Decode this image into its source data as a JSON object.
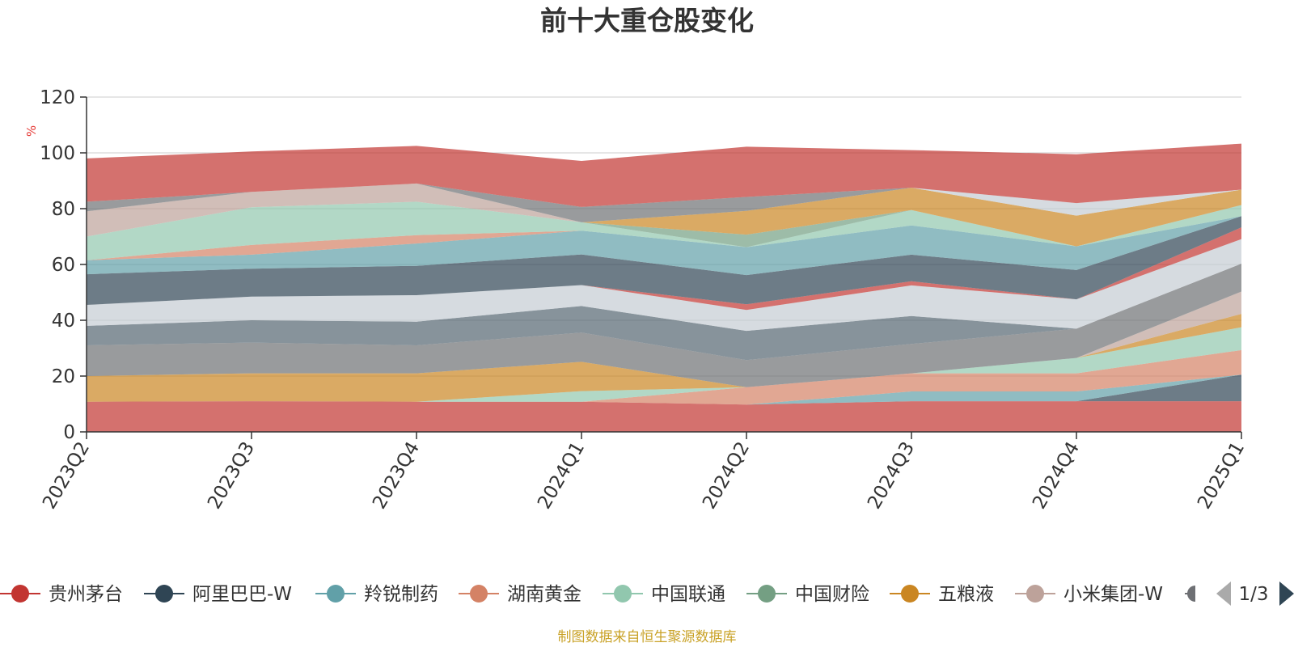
{
  "chart_data": {
    "type": "area",
    "stacked": true,
    "title": "前十大重仓股变化",
    "ylabel": "%",
    "ylim": [
      0,
      120
    ],
    "yticks": [
      0,
      20,
      40,
      60,
      80,
      100,
      120
    ],
    "grid": true,
    "categories": [
      "2023Q2",
      "2023Q3",
      "2023Q4",
      "2024Q1",
      "2024Q2",
      "2024Q3",
      "2024Q4",
      "2025Q1"
    ],
    "series": [
      {
        "name": "贵州茅台",
        "color": "#c23531",
        "values": [
          10.8,
          11.0,
          10.8,
          10.8,
          9.8,
          11.0,
          11.0,
          11.0
        ]
      },
      {
        "name": "阿里巴巴-W",
        "color": "#2f4554",
        "values": [
          0,
          0,
          0,
          0,
          0,
          0,
          0,
          9.5
        ]
      },
      {
        "name": "羚锐制药",
        "color": "#61a0a8",
        "values": [
          0,
          0,
          0,
          0,
          0,
          3.5,
          3.5,
          0
        ]
      },
      {
        "name": "湖南黄金",
        "color": "#d48265",
        "values": [
          0,
          0,
          0,
          0,
          6.2,
          6.5,
          6.5,
          8.8
        ]
      },
      {
        "name": "中国联通",
        "color": "#91c7ae",
        "values": [
          0,
          0,
          0,
          3.8,
          0,
          0,
          5.5,
          8.2
        ]
      },
      {
        "name": "中国财险",
        "color": "#749f83",
        "values": [
          0,
          0,
          0,
          0,
          0,
          0,
          0,
          0
        ]
      },
      {
        "name": "五粮液",
        "color": "#ca8622",
        "values": [
          9.2,
          10.0,
          10.2,
          10.5,
          0,
          0,
          0,
          4.8
        ]
      },
      {
        "name": "小米集团-W",
        "color": "#bda29a",
        "values": [
          0,
          0,
          0,
          0,
          0,
          0,
          0,
          8.0
        ]
      },
      {
        "name": "",
        "color": "#6e7074",
        "values": [
          11.0,
          11.0,
          10.0,
          10.5,
          9.7,
          10.5,
          10.5,
          10.0
        ]
      },
      {
        "name": "",
        "color": "#546570",
        "values": [
          7.0,
          8.0,
          8.5,
          9.5,
          10.5,
          10.0,
          0,
          0
        ]
      },
      {
        "name": "",
        "color": "#c4ccd3",
        "values": [
          7.5,
          8.5,
          9.5,
          7.5,
          7.5,
          11.0,
          10.5,
          8.8
        ]
      },
      {
        "name": "",
        "color": "#c23531",
        "values": [
          0,
          0,
          0,
          0,
          2.0,
          1.5,
          0,
          4.2
        ]
      },
      {
        "name": "",
        "color": "#2f4554",
        "values": [
          11.0,
          10.0,
          10.5,
          11.0,
          10.5,
          9.5,
          10.5,
          4.0
        ]
      },
      {
        "name": "",
        "color": "#61a0a8",
        "values": [
          5.0,
          5.0,
          8.0,
          8.5,
          10.0,
          10.5,
          8.5,
          0
        ]
      },
      {
        "name": "",
        "color": "#d48265",
        "values": [
          0,
          3.5,
          3.0,
          0,
          0,
          0,
          0,
          0
        ]
      },
      {
        "name": "",
        "color": "#91c7ae",
        "values": [
          8.5,
          13.5,
          12.0,
          3.0,
          0,
          5.5,
          0,
          4.0
        ]
      },
      {
        "name": "",
        "color": "#749f83",
        "values": [
          0,
          0,
          0,
          0,
          4.5,
          0,
          0,
          0
        ]
      },
      {
        "name": "",
        "color": "#ca8622",
        "values": [
          0,
          0,
          0,
          0,
          8.5,
          8.0,
          11.0,
          5.5
        ]
      },
      {
        "name": "",
        "color": "#bda29a",
        "values": [
          9.0,
          5.5,
          6.5,
          0,
          0,
          0,
          0,
          0
        ]
      },
      {
        "name": "",
        "color": "#6e7074",
        "values": [
          3.5,
          0,
          0,
          5.5,
          5.0,
          0,
          0,
          0
        ]
      },
      {
        "name": "",
        "color": "#c4ccd3",
        "values": [
          0,
          0,
          0,
          0,
          0,
          0,
          4.5,
          0
        ]
      },
      {
        "name": "",
        "color": "#c23531",
        "values": [
          15.5,
          14.5,
          13.5,
          16.5,
          18.0,
          13.5,
          17.5,
          16.5
        ]
      }
    ],
    "legend": {
      "position": "bottom",
      "visible_items": [
        "贵州茅台",
        "阿里巴巴-W",
        "羚锐制药",
        "湖南黄金",
        "中国联通",
        "中国财险",
        "五粮液",
        "小米集团-W"
      ],
      "page": "1/3"
    },
    "source_note": "制图数据来自恒生聚源数据库"
  }
}
